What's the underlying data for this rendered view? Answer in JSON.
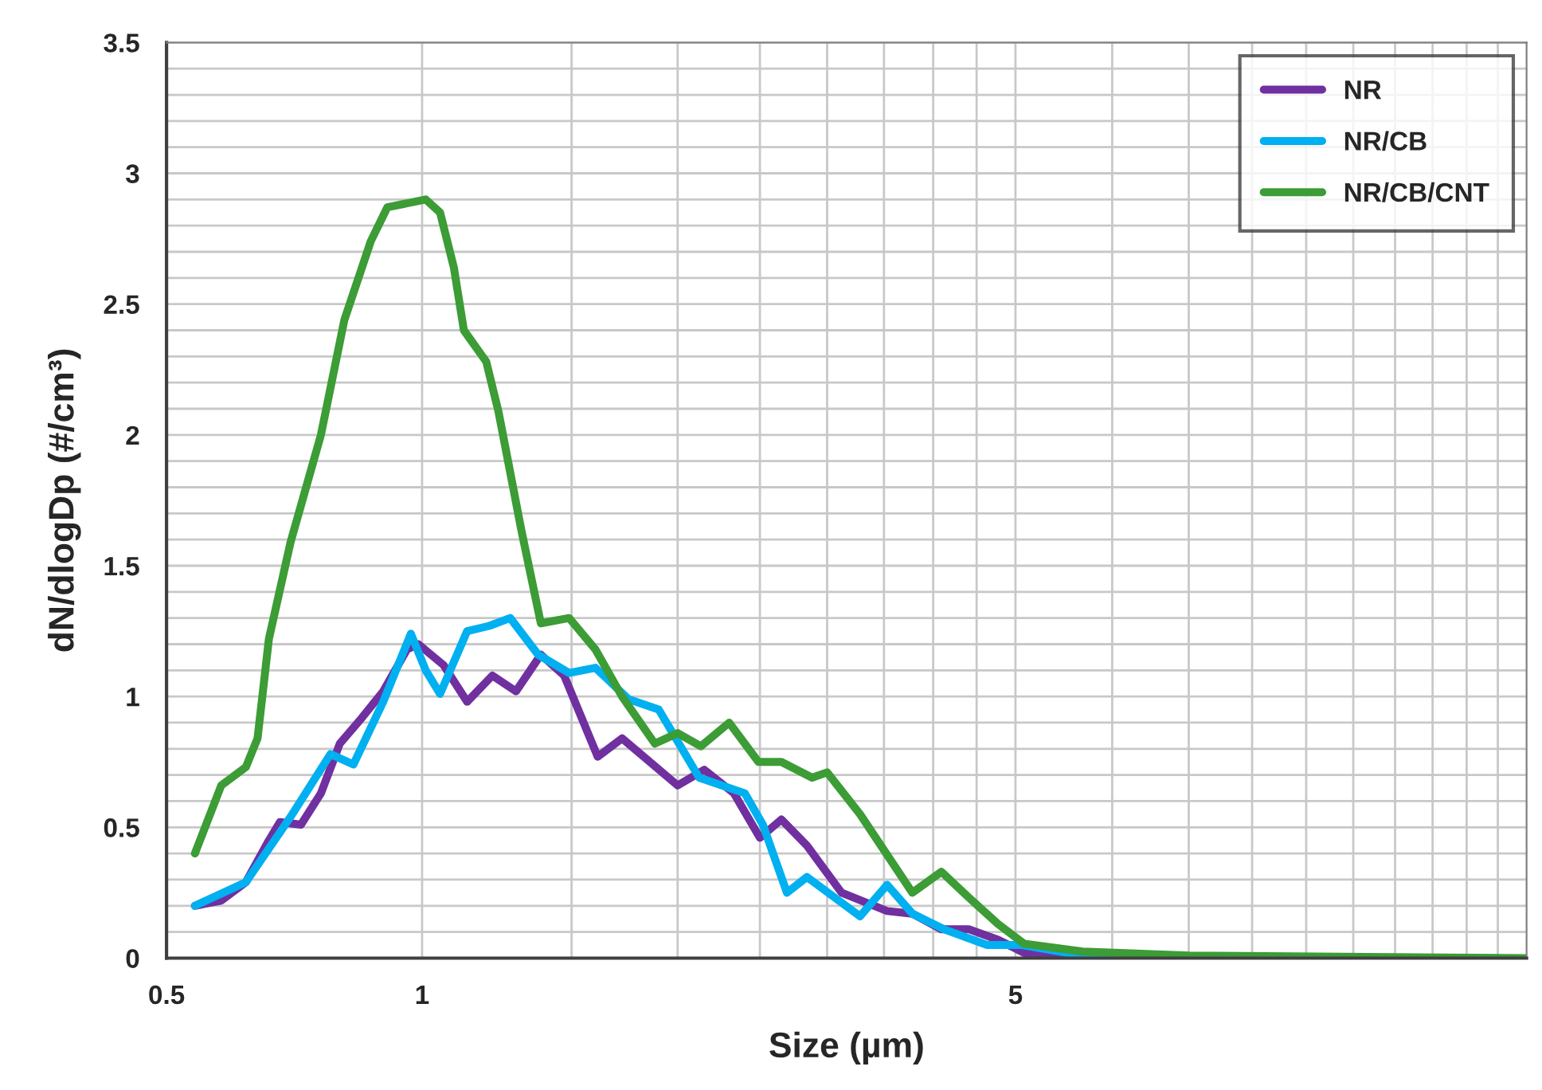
{
  "chart_data": {
    "type": "line",
    "xlabel": "Size (µm)",
    "ylabel": "dN/dlogDp (#/cm³)",
    "log": "x",
    "xlim": [
      0.5,
      20
    ],
    "xticks": [
      0.5,
      1,
      {
        "value": 1.5,
        "label": null
      },
      {
        "value": 2,
        "label": null
      },
      {
        "value": 2.5,
        "label": null
      },
      {
        "value": 3,
        "label": null
      },
      {
        "value": 3.5,
        "label": null
      },
      {
        "value": 4,
        "label": null
      },
      {
        "value": 4.5,
        "label": null
      },
      5,
      {
        "value": 6.5,
        "label": null
      },
      {
        "value": 8,
        "label": null
      },
      {
        "value": 9.5,
        "label": null
      },
      {
        "value": 11,
        "label": null
      },
      {
        "value": 12.5,
        "label": null
      },
      {
        "value": 14,
        "label": null
      },
      {
        "value": 15.5,
        "label": null
      },
      {
        "value": 17,
        "label": null
      },
      {
        "value": 18.5,
        "label": null
      }
    ],
    "ylim": [
      0,
      3.5
    ],
    "yticks": [
      0,
      {
        "value": 0.1,
        "label": null
      },
      {
        "value": 0.2,
        "label": null
      },
      {
        "value": 0.3,
        "label": null
      },
      {
        "value": 0.4,
        "label": null
      },
      0.5,
      {
        "value": 0.6,
        "label": null
      },
      {
        "value": 0.7,
        "label": null
      },
      {
        "value": 0.8,
        "label": null
      },
      {
        "value": 0.9,
        "label": null
      },
      1,
      {
        "value": 1.1,
        "label": null
      },
      {
        "value": 1.2,
        "label": null
      },
      {
        "value": 1.3,
        "label": null
      },
      {
        "value": 1.4,
        "label": null
      },
      1.5,
      {
        "value": 1.6,
        "label": null
      },
      {
        "value": 1.7,
        "label": null
      },
      {
        "value": 1.8,
        "label": null
      },
      {
        "value": 1.9,
        "label": null
      },
      2,
      {
        "value": 2.1,
        "label": null
      },
      {
        "value": 2.2,
        "label": null
      },
      {
        "value": 2.3,
        "label": null
      },
      {
        "value": 2.4,
        "label": null
      },
      2.5,
      {
        "value": 2.6,
        "label": null
      },
      {
        "value": 2.7,
        "label": null
      },
      {
        "value": 2.8,
        "label": null
      },
      {
        "value": 2.9,
        "label": null
      },
      3,
      {
        "value": 3.1,
        "label": null
      },
      {
        "value": 3.2,
        "label": null
      },
      {
        "value": 3.3,
        "label": null
      },
      {
        "value": 3.4,
        "label": null
      },
      3.5
    ],
    "grid": true,
    "legend": "top right",
    "marker": "none",
    "line_style": "solid",
    "series": [
      {
        "name": "NR",
        "color": "#7030a0",
        "x": [
          0.54,
          0.58,
          0.62,
          0.66,
          0.68,
          0.72,
          0.76,
          0.8,
          0.85,
          0.9,
          0.96,
          0.99,
          1.06,
          1.13,
          1.21,
          1.29,
          1.38,
          1.47,
          1.61,
          1.72,
          2.0,
          2.15,
          2.33,
          2.5,
          2.65,
          2.84,
          3.12,
          3.53,
          3.78,
          4.09,
          4.41,
          4.77,
          5.12,
          6.0,
          8.0
        ],
        "values": [
          0.2,
          0.22,
          0.29,
          0.45,
          0.52,
          0.51,
          0.63,
          0.82,
          0.92,
          1.02,
          1.18,
          1.2,
          1.12,
          0.98,
          1.08,
          1.02,
          1.16,
          1.08,
          0.77,
          0.84,
          0.66,
          0.72,
          0.63,
          0.46,
          0.53,
          0.43,
          0.25,
          0.18,
          0.17,
          0.11,
          0.11,
          0.07,
          0.02,
          0.0,
          0.0
        ]
      },
      {
        "name": "NR/CB",
        "color": "#00b0f0",
        "x": [
          0.54,
          0.62,
          0.7,
          0.78,
          0.83,
          0.9,
          0.97,
          1.01,
          1.05,
          1.13,
          1.2,
          1.27,
          1.37,
          1.49,
          1.6,
          1.75,
          1.9,
          2.12,
          2.4,
          2.52,
          2.69,
          2.84,
          3.28,
          3.53,
          3.78,
          4.12,
          4.63,
          5.09,
          6.0,
          8.0
        ],
        "values": [
          0.2,
          0.29,
          0.54,
          0.78,
          0.74,
          0.98,
          1.24,
          1.1,
          1.01,
          1.25,
          1.27,
          1.3,
          1.16,
          1.09,
          1.11,
          0.99,
          0.95,
          0.69,
          0.63,
          0.51,
          0.25,
          0.31,
          0.16,
          0.28,
          0.17,
          0.11,
          0.05,
          0.05,
          0.01,
          0.0
        ]
      },
      {
        "name": "NR/CB/CNT",
        "color": "#3c9c35",
        "x": [
          0.54,
          0.58,
          0.62,
          0.64,
          0.66,
          0.7,
          0.76,
          0.81,
          0.87,
          0.91,
          1.01,
          1.05,
          1.09,
          1.12,
          1.19,
          1.23,
          1.31,
          1.38,
          1.49,
          1.6,
          1.72,
          1.88,
          2.0,
          2.13,
          2.3,
          2.49,
          2.65,
          2.88,
          3.0,
          3.28,
          3.78,
          4.09,
          4.41,
          4.77,
          5.12,
          6.0,
          8.0,
          20
        ],
        "values": [
          0.4,
          0.66,
          0.73,
          0.84,
          1.22,
          1.59,
          2.0,
          2.44,
          2.74,
          2.87,
          2.9,
          2.85,
          2.64,
          2.4,
          2.28,
          2.09,
          1.63,
          1.28,
          1.3,
          1.18,
          1.0,
          0.82,
          0.86,
          0.81,
          0.9,
          0.75,
          0.75,
          0.69,
          0.71,
          0.55,
          0.25,
          0.33,
          0.23,
          0.13,
          0.055,
          0.025,
          0.01,
          0.0
        ]
      }
    ]
  }
}
